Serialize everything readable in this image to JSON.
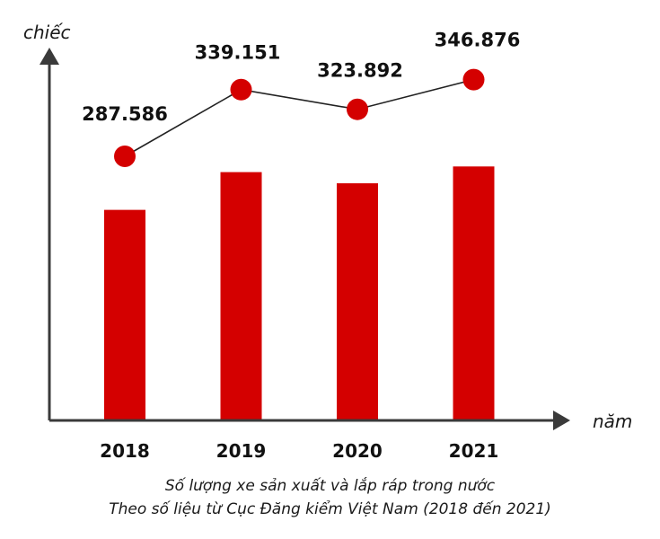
{
  "chart_data": {
    "type": "bar",
    "title": "",
    "xlabel": "năm",
    "ylabel": "chiếc",
    "categories": [
      "2018",
      "2019",
      "2020",
      "2021"
    ],
    "values": [
      287586,
      339151,
      323892,
      346876
    ],
    "value_labels": [
      "287.586",
      "339.151",
      "323.892",
      "346.876"
    ],
    "ylim": [
      0,
      420000
    ],
    "grid": false,
    "legend": "none",
    "overlay": "line with markers connecting the same values",
    "colors": {
      "bar": "#d40000",
      "marker": "#d40000",
      "line": "#222222",
      "axis": "#3a3a3a"
    }
  },
  "caption": {
    "line1": "Số lượng xe sản xuất và lắp ráp trong nước",
    "line2": "Theo số liệu từ Cục Đăng kiểm Việt Nam (2018 đến 2021)"
  }
}
